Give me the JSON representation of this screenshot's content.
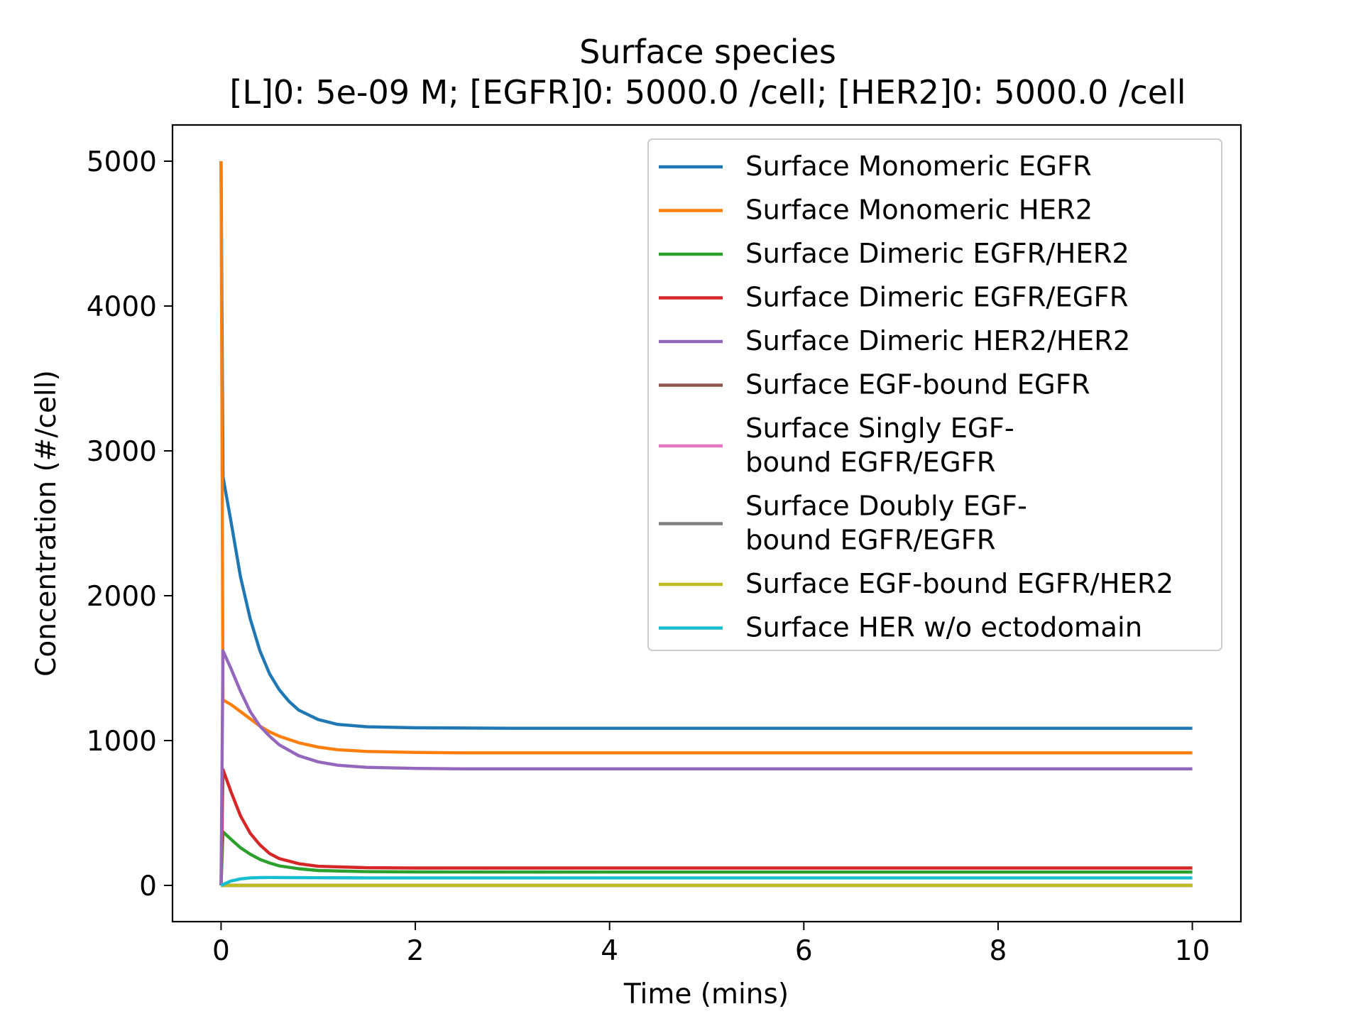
{
  "chart_data": {
    "type": "line",
    "title": "Surface species",
    "subtitle": "[L]0: 5e-09 M; [EGFR]0: 5000.0 /cell; [HER2]0: 5000.0 /cell",
    "xlabel": "Time (mins)",
    "ylabel": "Concentration (#/cell)",
    "xlim": [
      -0.5,
      10.5
    ],
    "ylim": [
      -250,
      5250
    ],
    "xticks": [
      0,
      2,
      4,
      6,
      8,
      10
    ],
    "yticks": [
      0,
      1000,
      2000,
      3000,
      4000,
      5000
    ],
    "xtick_labels": [
      "0",
      "2",
      "4",
      "6",
      "8",
      "10"
    ],
    "ytick_labels": [
      "0",
      "1000",
      "2000",
      "3000",
      "4000",
      "5000"
    ],
    "grid": false,
    "legend_position": "top-right",
    "series": [
      {
        "name": "Surface Monomeric EGFR",
        "color": "#1f77b4",
        "x": [
          0,
          0.02,
          0.1,
          0.2,
          0.3,
          0.4,
          0.5,
          0.6,
          0.7,
          0.8,
          1.0,
          1.2,
          1.5,
          2,
          3,
          4,
          6,
          8,
          10
        ],
        "y": [
          5000,
          2820,
          2520,
          2130,
          1840,
          1620,
          1460,
          1350,
          1270,
          1210,
          1145,
          1112,
          1095,
          1088,
          1085,
          1085,
          1085,
          1085,
          1085
        ]
      },
      {
        "name": "Surface Monomeric HER2",
        "color": "#ff7f0e",
        "x": [
          0,
          0.02,
          0.1,
          0.2,
          0.3,
          0.4,
          0.5,
          0.6,
          0.8,
          1.0,
          1.2,
          1.5,
          2,
          2.5,
          3,
          4,
          6,
          8,
          10
        ],
        "y": [
          5000,
          1280,
          1250,
          1200,
          1150,
          1100,
          1060,
          1030,
          985,
          955,
          937,
          925,
          918,
          915,
          915,
          915,
          915,
          915,
          915
        ]
      },
      {
        "name": "Surface Dimeric EGFR/HER2",
        "color": "#2ca02c",
        "x": [
          0,
          0.02,
          0.1,
          0.2,
          0.3,
          0.4,
          0.5,
          0.6,
          0.8,
          1.0,
          1.5,
          2,
          4,
          6,
          8,
          10
        ],
        "y": [
          0,
          370,
          320,
          260,
          215,
          180,
          155,
          135,
          115,
          103,
          95,
          93,
          92,
          92,
          92,
          92
        ]
      },
      {
        "name": "Surface Dimeric EGFR/EGFR",
        "color": "#d62728",
        "x": [
          0,
          0.02,
          0.1,
          0.2,
          0.3,
          0.4,
          0.5,
          0.6,
          0.8,
          1.0,
          1.5,
          2,
          4,
          6,
          8,
          10
        ],
        "y": [
          0,
          800,
          650,
          480,
          360,
          280,
          220,
          185,
          150,
          132,
          122,
          120,
          120,
          120,
          120,
          120
        ]
      },
      {
        "name": "Surface Dimeric HER2/HER2",
        "color": "#9467bd",
        "x": [
          0,
          0.02,
          0.1,
          0.2,
          0.3,
          0.4,
          0.5,
          0.6,
          0.8,
          1.0,
          1.2,
          1.5,
          2,
          2.5,
          3,
          4,
          6,
          8,
          10
        ],
        "y": [
          0,
          1620,
          1500,
          1340,
          1200,
          1100,
          1030,
          970,
          895,
          853,
          830,
          815,
          808,
          805,
          805,
          805,
          805,
          805,
          805
        ]
      },
      {
        "name": "Surface EGF-bound EGFR",
        "color": "#8c564b",
        "x": [
          0,
          10
        ],
        "y": [
          0,
          0
        ]
      },
      {
        "name": "Surface Singly EGF-\nbound EGFR/EGFR",
        "color": "#e377c2",
        "x": [
          0,
          10
        ],
        "y": [
          0,
          0
        ]
      },
      {
        "name": "Surface Doubly EGF-\nbound EGFR/EGFR",
        "color": "#7f7f7f",
        "x": [
          0,
          10
        ],
        "y": [
          0,
          0
        ]
      },
      {
        "name": "Surface EGF-bound EGFR/HER2",
        "color": "#bcbd22",
        "x": [
          0,
          10
        ],
        "y": [
          0,
          0
        ]
      },
      {
        "name": "Surface HER w/o ectodomain",
        "color": "#17becf",
        "x": [
          0,
          0.1,
          0.2,
          0.3,
          0.4,
          0.5,
          0.7,
          1.0,
          1.5,
          2,
          4,
          6,
          8,
          10
        ],
        "y": [
          0,
          30,
          45,
          52,
          54,
          55,
          54,
          53,
          52,
          52,
          52,
          52,
          52,
          52
        ]
      }
    ]
  }
}
